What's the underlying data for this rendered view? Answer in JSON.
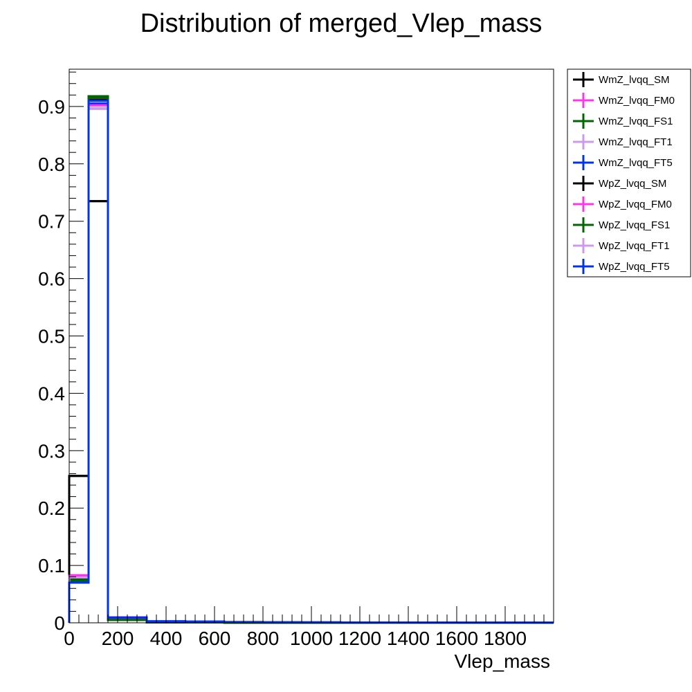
{
  "chart_data": {
    "type": "step-histogram",
    "title": "Distribution of merged_Vlep_mass",
    "xlabel": "Vlep_mass",
    "ylabel": "",
    "xlim": [
      0,
      2000
    ],
    "ylim": [
      0,
      0.965
    ],
    "x_ticks": [
      0,
      200,
      400,
      600,
      800,
      1000,
      1200,
      1400,
      1600,
      1800
    ],
    "x_tick_labels": [
      "0",
      "200",
      "400",
      "600",
      "800",
      "1000",
      "1200",
      "1400",
      "1600",
      "1800"
    ],
    "y_ticks": [
      0,
      0.1,
      0.2,
      0.3,
      0.4,
      0.5,
      0.6,
      0.7,
      0.8,
      0.9
    ],
    "y_tick_labels": [
      "0",
      "0.1",
      "0.2",
      "0.3",
      "0.4",
      "0.5",
      "0.6",
      "0.7",
      "0.8",
      "0.9"
    ],
    "bin_edges": [
      0,
      80,
      160,
      320,
      480,
      640,
      800,
      960,
      1120,
      1280,
      1440,
      1600,
      1760,
      1920,
      2000
    ],
    "grid": false,
    "legend_position": "right",
    "series": [
      {
        "name": "WmZ_lvqq_SM",
        "color": "#000000",
        "values": [
          0.078,
          0.912,
          0.006,
          0.001,
          0.0008,
          0.0005,
          0.0003,
          0.0003,
          0.0002,
          0.0001,
          0.0001,
          0.0001,
          0.0001,
          0.0001
        ]
      },
      {
        "name": "WmZ_lvqq_FM0",
        "color": "#ff33ee",
        "values": [
          0.083,
          0.905,
          0.008,
          0.002,
          0.0018,
          0.0012,
          0.0008,
          0.0006,
          0.0004,
          0.0003,
          0.0002,
          0.0002,
          0.0001,
          0.0001
        ]
      },
      {
        "name": "WmZ_lvqq_FS1",
        "color": "#006600",
        "values": [
          0.075,
          0.918,
          0.005,
          0.001,
          0.0006,
          0.0004,
          0.0003,
          0.0002,
          0.0002,
          0.0001,
          0.0001,
          0.0001,
          0.0001,
          0.0001
        ]
      },
      {
        "name": "WmZ_lvqq_FT1",
        "color": "#cc99ee",
        "values": [
          0.08,
          0.896,
          0.01,
          0.003,
          0.0022,
          0.0015,
          0.001,
          0.0008,
          0.0006,
          0.0004,
          0.0003,
          0.0002,
          0.0002,
          0.0001
        ]
      },
      {
        "name": "WmZ_lvqq_FT5",
        "color": "#0033ee",
        "values": [
          0.072,
          0.905,
          0.009,
          0.0025,
          0.002,
          0.0012,
          0.0009,
          0.0007,
          0.0005,
          0.0004,
          0.0003,
          0.0002,
          0.0002,
          0.0001
        ]
      },
      {
        "name": "WpZ_lvqq_SM",
        "color": "#000000",
        "values": [
          0.256,
          0.735,
          0.006,
          0.001,
          0.0008,
          0.0005,
          0.0003,
          0.0003,
          0.0002,
          0.0001,
          0.0001,
          0.0001,
          0.0001,
          0.0001
        ]
      },
      {
        "name": "WpZ_lvqq_FM0",
        "color": "#ff33ee",
        "values": [
          0.082,
          0.902,
          0.008,
          0.002,
          0.0018,
          0.0012,
          0.0008,
          0.0006,
          0.0004,
          0.0003,
          0.0002,
          0.0002,
          0.0001,
          0.0001
        ]
      },
      {
        "name": "WpZ_lvqq_FS1",
        "color": "#006600",
        "values": [
          0.074,
          0.916,
          0.005,
          0.001,
          0.0006,
          0.0004,
          0.0003,
          0.0002,
          0.0002,
          0.0001,
          0.0001,
          0.0001,
          0.0001,
          0.0001
        ]
      },
      {
        "name": "WpZ_lvqq_FT1",
        "color": "#cc99ee",
        "values": [
          0.079,
          0.897,
          0.01,
          0.003,
          0.0022,
          0.0015,
          0.001,
          0.0008,
          0.0006,
          0.0004,
          0.0003,
          0.0002,
          0.0002,
          0.0001
        ]
      },
      {
        "name": "WpZ_lvqq_FT5",
        "color": "#0033ee",
        "values": [
          0.07,
          0.91,
          0.009,
          0.0025,
          0.002,
          0.0012,
          0.0009,
          0.0007,
          0.0005,
          0.0004,
          0.0003,
          0.0002,
          0.0002,
          0.0001
        ]
      }
    ]
  }
}
